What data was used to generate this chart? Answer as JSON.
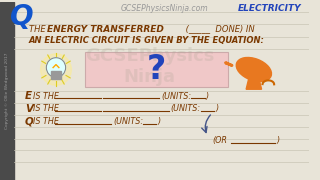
{
  "bg_color": "#e8e4d8",
  "line_color": "#c8c4b4",
  "title_site": "GCSEPhysicsNinja.com",
  "title_topic": "ELECTRICITY",
  "q_letter": "Q",
  "q_color": "#1155cc",
  "box_color": "#f0c8c8",
  "box_edge_color": "#ccaaaa",
  "question_mark": "?",
  "qm_color": "#2244bb",
  "text_color": "#7a3800",
  "label_color": "#7a3800",
  "bold_color": "#7a3800",
  "electricity_color": "#2244bb",
  "site_color": "#999999",
  "copyright_color": "#999999",
  "watermark_color": "#b0a898",
  "arrow_color": "#555577",
  "bg_dark_left": "#555555"
}
